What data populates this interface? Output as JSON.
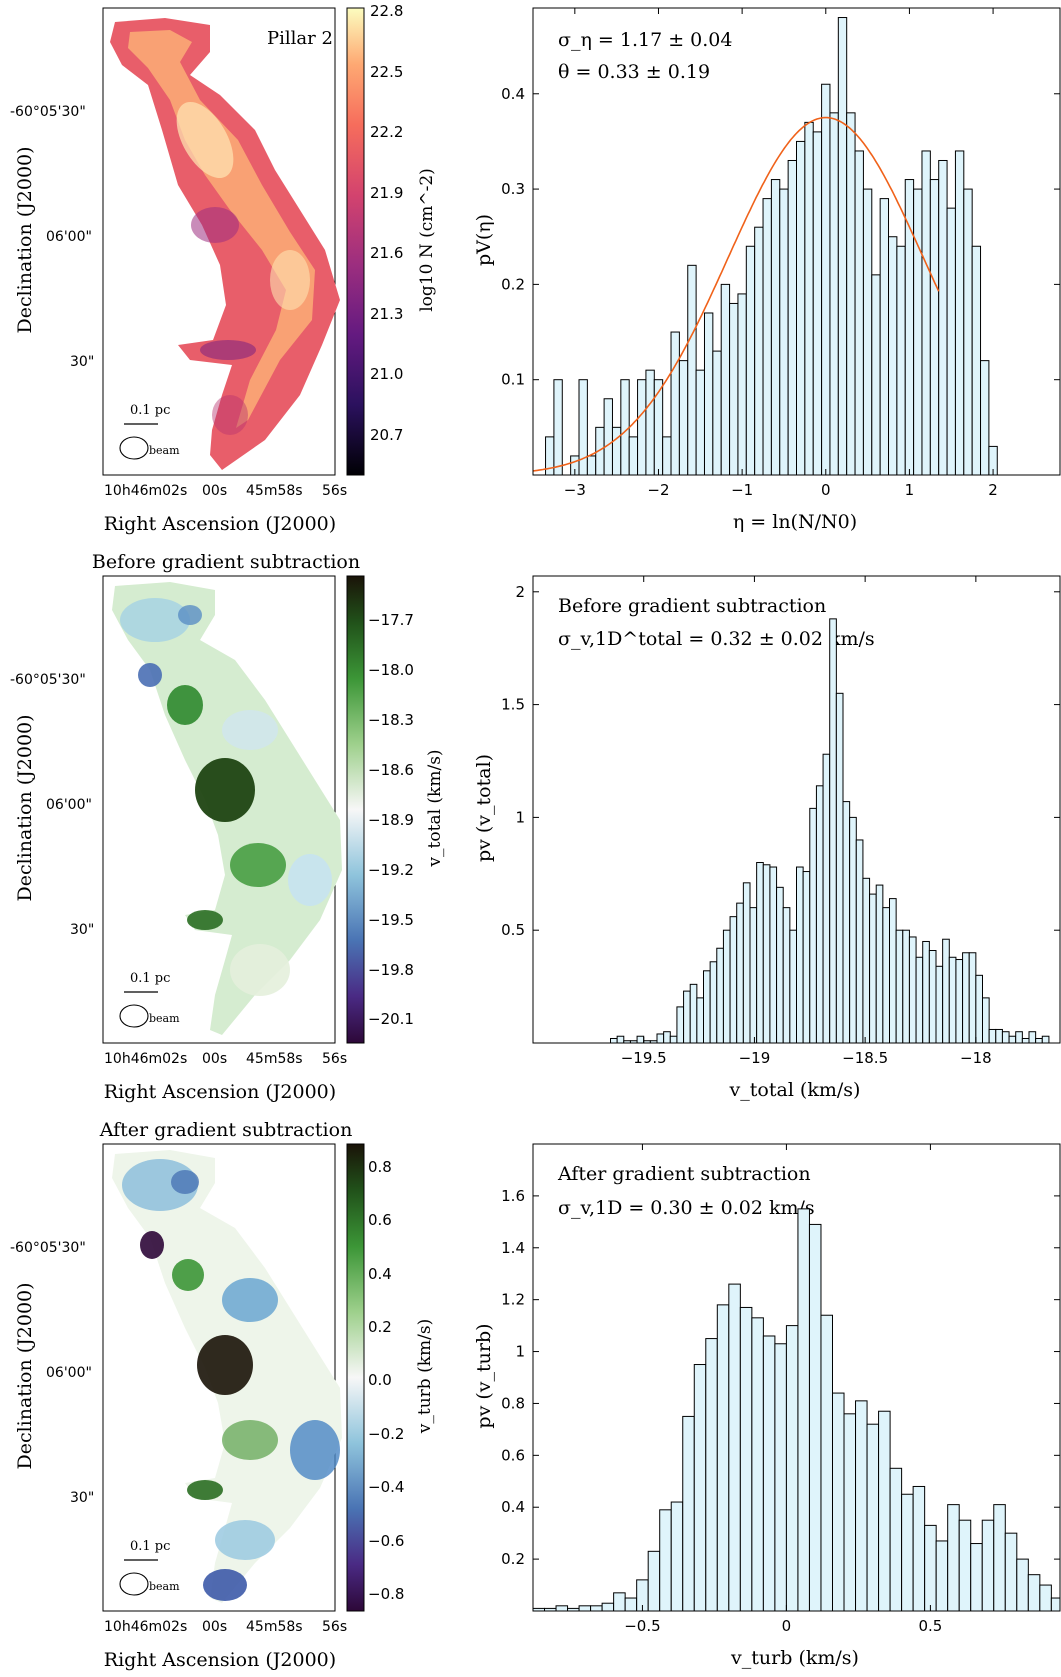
{
  "rows": [
    {
      "map": {
        "title": "",
        "inset_label": "Pillar 2",
        "xlabel": "Right Ascension (J2000)",
        "ylabel": "Declination (J2000)",
        "x_ticks": [
          "10h46m02s",
          "00s",
          "45m58s",
          "56s"
        ],
        "y_ticks": [
          "-60°05'30\"",
          "06'00\"",
          "30\""
        ],
        "scalebar": "0.1 pc",
        "beam": "beam",
        "cbar_label": "log10 N (cm^-2)",
        "cbar_ticks": [
          "22.8",
          "22.5",
          "22.2",
          "21.9",
          "21.6",
          "21.3",
          "21.0",
          "20.7"
        ],
        "colormap": "magma"
      },
      "hist": {
        "annot1": "σ_η = 1.17 ± 0.04",
        "annot2": "θ = 0.33 ± 0.19",
        "xlabel": "η = ln(N/N0)",
        "ylabel": "pV(η)"
      }
    },
    {
      "map": {
        "title": "Before gradient subtraction",
        "inset_label": "",
        "xlabel": "Right Ascension (J2000)",
        "ylabel": "Declination (J2000)",
        "x_ticks": [
          "10h46m02s",
          "00s",
          "45m58s",
          "56s"
        ],
        "y_ticks": [
          "-60°05'30\"",
          "06'00\"",
          "30\""
        ],
        "scalebar": "0.1 pc",
        "beam": "beam",
        "cbar_label": "v_total (km/s)",
        "cbar_ticks": [
          "−17.7",
          "−18.0",
          "−18.3",
          "−18.6",
          "−18.9",
          "−19.2",
          "−19.5",
          "−19.8",
          "−20.1"
        ],
        "colormap": "green-white-blue"
      },
      "hist": {
        "annot1": "Before gradient subtraction",
        "annot2": "σ_v,1D^total = 0.32 ± 0.02 km/s",
        "xlabel": "v_total (km/s)",
        "ylabel": "pv (v_total)"
      }
    },
    {
      "map": {
        "title": "After gradient subtraction",
        "inset_label": "",
        "xlabel": "Right Ascension (J2000)",
        "ylabel": "Declination (J2000)",
        "x_ticks": [
          "10h46m02s",
          "00s",
          "45m58s",
          "56s"
        ],
        "y_ticks": [
          "-60°05'30\"",
          "06'00\"",
          "30\""
        ],
        "scalebar": "0.1 pc",
        "beam": "beam",
        "cbar_label": "v_turb (km/s)",
        "cbar_ticks": [
          "0.8",
          "0.6",
          "0.4",
          "0.2",
          "0.0",
          "−0.2",
          "−0.4",
          "−0.6",
          "−0.8"
        ],
        "colormap": "green-white-blue"
      },
      "hist": {
        "annot1": "After gradient subtraction",
        "annot2": "σ_v,1D = 0.30 ± 0.02 km/s",
        "xlabel": "v_turb (km/s)",
        "ylabel": "pv (v_turb)"
      }
    }
  ],
  "chart_data": [
    {
      "type": "bar",
      "panel": "column density PDF",
      "bar_color": "#dff4fb",
      "fit_color": "#f0621a",
      "xlim": [
        -3.5,
        2.8
      ],
      "ylim": [
        0,
        0.49
      ],
      "xticks": [
        -3,
        -2,
        -1,
        0,
        1,
        2
      ],
      "yticks": [
        0.1,
        0.2,
        0.3,
        0.4
      ],
      "x_start": -3.35,
      "bin_width": 0.1,
      "values": [
        0.04,
        0.1,
        0,
        0.02,
        0.1,
        0.02,
        0.05,
        0.08,
        0.05,
        0.1,
        0.04,
        0.1,
        0.11,
        0.1,
        0.04,
        0.15,
        0.12,
        0.22,
        0.11,
        0.17,
        0.13,
        0.2,
        0.18,
        0.19,
        0.24,
        0.26,
        0.29,
        0.31,
        0.3,
        0.33,
        0.35,
        0.37,
        0.36,
        0.41,
        0.38,
        0.48,
        0.38,
        0.34,
        0.3,
        0.21,
        0.29,
        0.25,
        0.24,
        0.31,
        0.3,
        0.34,
        0.31,
        0.33,
        0.28,
        0.34,
        0.3,
        0.24,
        0.12,
        0.03,
        0,
        0,
        0,
        0,
        0,
        0,
        0,
        0,
        0,
        0,
        0,
        0,
        0,
        0,
        0,
        0,
        0,
        0,
        0,
        0
      ],
      "fit": {
        "kind": "gaussian",
        "peak": 0.375,
        "mean": 0.0,
        "sigma": 1.17,
        "x_range": [
          -3.5,
          1.35
        ]
      }
    },
    {
      "type": "bar",
      "panel": "total velocity PDF",
      "bar_color": "#dff4fb",
      "xlim": [
        -20.0,
        -17.62
      ],
      "ylim": [
        0,
        2.07
      ],
      "xticks": [
        -19.5,
        -19.0,
        -18.5,
        -18.0
      ],
      "yticks": [
        0.5,
        1.0,
        1.5,
        2.0
      ],
      "x_start": -19.65,
      "bin_width": 0.03,
      "values": [
        0.02,
        0.03,
        0.01,
        0.01,
        0.03,
        0.01,
        0.01,
        0.04,
        0.05,
        0.03,
        0.16,
        0.23,
        0.26,
        0.2,
        0.32,
        0.36,
        0.42,
        0.5,
        0.56,
        0.62,
        0.71,
        0.6,
        0.8,
        0.79,
        0.78,
        0.69,
        0.6,
        0.5,
        0.78,
        0.76,
        1.04,
        1.14,
        1.28,
        1.88,
        1.55,
        1.07,
        1.0,
        0.9,
        0.73,
        0.66,
        0.7,
        0.6,
        0.64,
        0.5,
        0.5,
        0.47,
        0.38,
        0.45,
        0.41,
        0.34,
        0.46,
        0.38,
        0.37,
        0.4,
        0.4,
        0.3,
        0.2,
        0.06,
        0.06,
        0.05,
        0.03,
        0.05,
        0.02,
        0.05,
        0.02,
        0.03
      ]
    },
    {
      "type": "bar",
      "panel": "turbulent velocity PDF",
      "bar_color": "#dff4fb",
      "fit_color": "#f0621a",
      "xlim": [
        -0.88,
        0.95
      ],
      "ylim": [
        0,
        1.8
      ],
      "xticks": [
        -0.5,
        0.0,
        0.5
      ],
      "yticks": [
        0.2,
        0.4,
        0.6,
        0.8,
        1.0,
        1.2,
        1.4,
        1.6
      ],
      "x_start": -0.88,
      "bin_width": 0.04,
      "values": [
        0.01,
        0.01,
        0.02,
        0.01,
        0.02,
        0.02,
        0.03,
        0.07,
        0.05,
        0.12,
        0.23,
        0.39,
        0.42,
        0.75,
        0.95,
        1.05,
        1.18,
        1.26,
        1.17,
        1.13,
        1.06,
        1.03,
        1.1,
        1.55,
        1.49,
        1.14,
        0.84,
        0.76,
        0.81,
        0.72,
        0.77,
        0.55,
        0.45,
        0.48,
        0.33,
        0.27,
        0.41,
        0.35,
        0.26,
        0.35,
        0.41,
        0.3,
        0.2,
        0.14,
        0.1,
        0.05,
        0.06
      ]
    }
  ]
}
